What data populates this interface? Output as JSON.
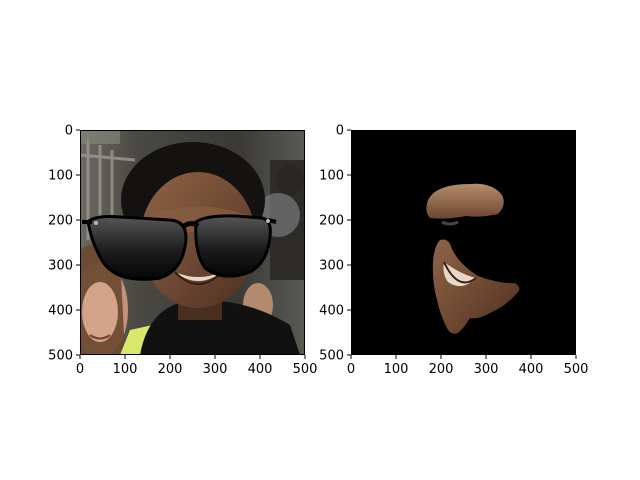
{
  "chart_data": [
    {
      "type": "image",
      "panel": "left",
      "content": "portrait photo with sunglasses overlay",
      "xlim": [
        0,
        500
      ],
      "ylim": [
        500,
        0
      ],
      "xticks": [
        0,
        100,
        200,
        300,
        400,
        500
      ],
      "yticks": [
        0,
        100,
        200,
        300,
        400,
        500
      ],
      "xtick_labels": [
        "0",
        "100",
        "200",
        "300",
        "400",
        "500"
      ],
      "ytick_labels": [
        "0",
        "100",
        "200",
        "300",
        "400",
        "500"
      ]
    },
    {
      "type": "image",
      "panel": "right",
      "content": "segmentation mask of face skin on black background",
      "xlim": [
        0,
        500
      ],
      "ylim": [
        500,
        0
      ],
      "xticks": [
        0,
        100,
        200,
        300,
        400,
        500
      ],
      "yticks": [
        0,
        100,
        200,
        300,
        400,
        500
      ],
      "xtick_labels": [
        "0",
        "100",
        "200",
        "300",
        "400",
        "500"
      ],
      "ytick_labels": [
        "0",
        "100",
        "200",
        "300",
        "400",
        "500"
      ]
    }
  ]
}
